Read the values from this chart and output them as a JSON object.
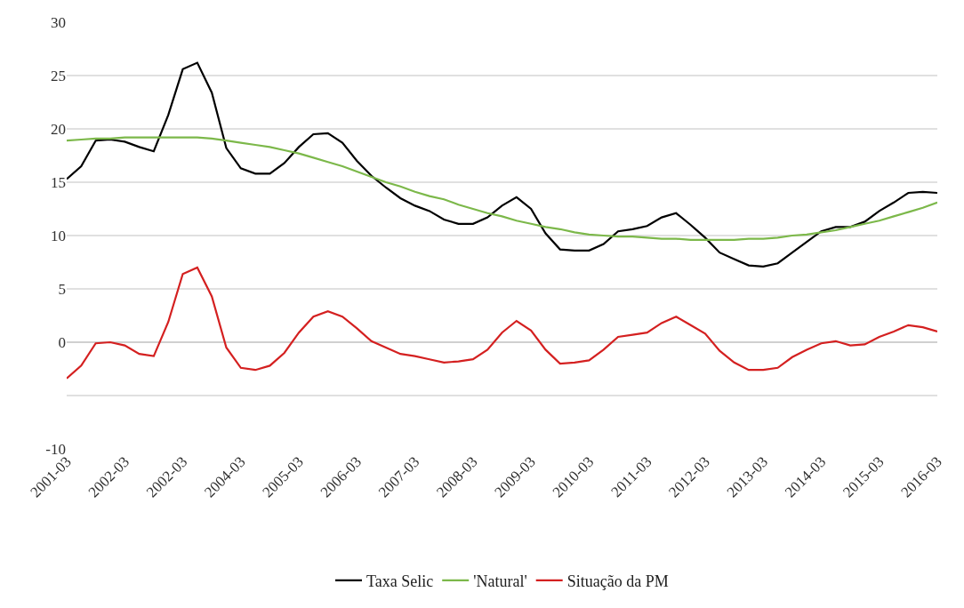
{
  "chart_data": {
    "type": "line",
    "categories": [
      "2001-03",
      null,
      null,
      null,
      "2002-03",
      null,
      null,
      null,
      "2002-03",
      null,
      null,
      null,
      "2004-03",
      null,
      null,
      null,
      "2005-03",
      null,
      null,
      null,
      "2006-03",
      null,
      null,
      null,
      "2007-03",
      null,
      null,
      null,
      "2008-03",
      null,
      null,
      null,
      "2009-03",
      null,
      null,
      null,
      "2010-03",
      null,
      null,
      null,
      "2011-03",
      null,
      null,
      null,
      "2012-03",
      null,
      null,
      null,
      "2013-03",
      null,
      null,
      null,
      "2014-03",
      null,
      null,
      null,
      "2015-03",
      null,
      null,
      null,
      "2016-03"
    ],
    "series": [
      {
        "name": "Taxa Selic",
        "color": "#000000",
        "values": [
          15.3,
          16.5,
          18.9,
          19.0,
          18.8,
          18.3,
          17.9,
          21.3,
          25.6,
          26.2,
          23.4,
          18.2,
          16.3,
          15.8,
          15.8,
          16.8,
          18.3,
          19.5,
          19.6,
          18.7,
          17.0,
          15.6,
          14.5,
          13.5,
          12.8,
          12.3,
          11.5,
          11.1,
          11.1,
          11.7,
          12.8,
          13.6,
          12.5,
          10.2,
          8.7,
          8.6,
          8.6,
          9.2,
          10.4,
          10.6,
          10.9,
          11.7,
          12.1,
          11.0,
          9.8,
          8.4,
          7.8,
          7.2,
          7.1,
          7.4,
          8.4,
          9.4,
          10.4,
          10.8,
          10.8,
          11.3,
          12.3,
          13.1,
          14.0,
          14.1,
          14.0
        ]
      },
      {
        "name": "'Natural'",
        "color": "#7cb84a",
        "values": [
          18.9,
          19.0,
          19.1,
          19.1,
          19.2,
          19.2,
          19.2,
          19.2,
          19.2,
          19.2,
          19.1,
          18.9,
          18.7,
          18.5,
          18.3,
          18.0,
          17.7,
          17.3,
          16.9,
          16.5,
          16.0,
          15.5,
          15.0,
          14.6,
          14.1,
          13.7,
          13.4,
          12.9,
          12.5,
          12.1,
          11.8,
          11.4,
          11.1,
          10.8,
          10.6,
          10.3,
          10.1,
          10.0,
          9.9,
          9.9,
          9.8,
          9.7,
          9.7,
          9.6,
          9.6,
          9.6,
          9.6,
          9.7,
          9.7,
          9.8,
          10.0,
          10.1,
          10.3,
          10.5,
          10.8,
          11.1,
          11.4,
          11.8,
          12.2,
          12.6,
          13.1
        ]
      },
      {
        "name": "Situação da PM",
        "color": "#d42020",
        "values": [
          -3.4,
          -2.2,
          -0.1,
          0.0,
          -0.3,
          -1.1,
          -1.3,
          1.9,
          6.4,
          7.0,
          4.3,
          -0.5,
          -2.4,
          -2.6,
          -2.2,
          -1.0,
          0.9,
          2.4,
          2.9,
          2.4,
          1.3,
          0.1,
          -0.5,
          -1.1,
          -1.3,
          -1.6,
          -1.9,
          -1.8,
          -1.6,
          -0.7,
          0.9,
          2.0,
          1.1,
          -0.7,
          -2.0,
          -1.9,
          -1.7,
          -0.7,
          0.5,
          0.7,
          0.9,
          1.8,
          2.4,
          1.6,
          0.8,
          -0.8,
          -1.9,
          -2.6,
          -2.6,
          -2.4,
          -1.4,
          -0.7,
          -0.1,
          0.1,
          -0.3,
          -0.2,
          0.5,
          1.0,
          1.6,
          1.4,
          1.0
        ]
      }
    ],
    "ylim": [
      -10,
      30
    ],
    "yticks": [
      -10,
      {
        "value": -5,
        "label": null
      },
      0,
      5,
      10,
      15,
      20,
      25,
      30
    ],
    "grid": "y",
    "legend": "bottom",
    "marker": "none",
    "line_style": "solid"
  }
}
